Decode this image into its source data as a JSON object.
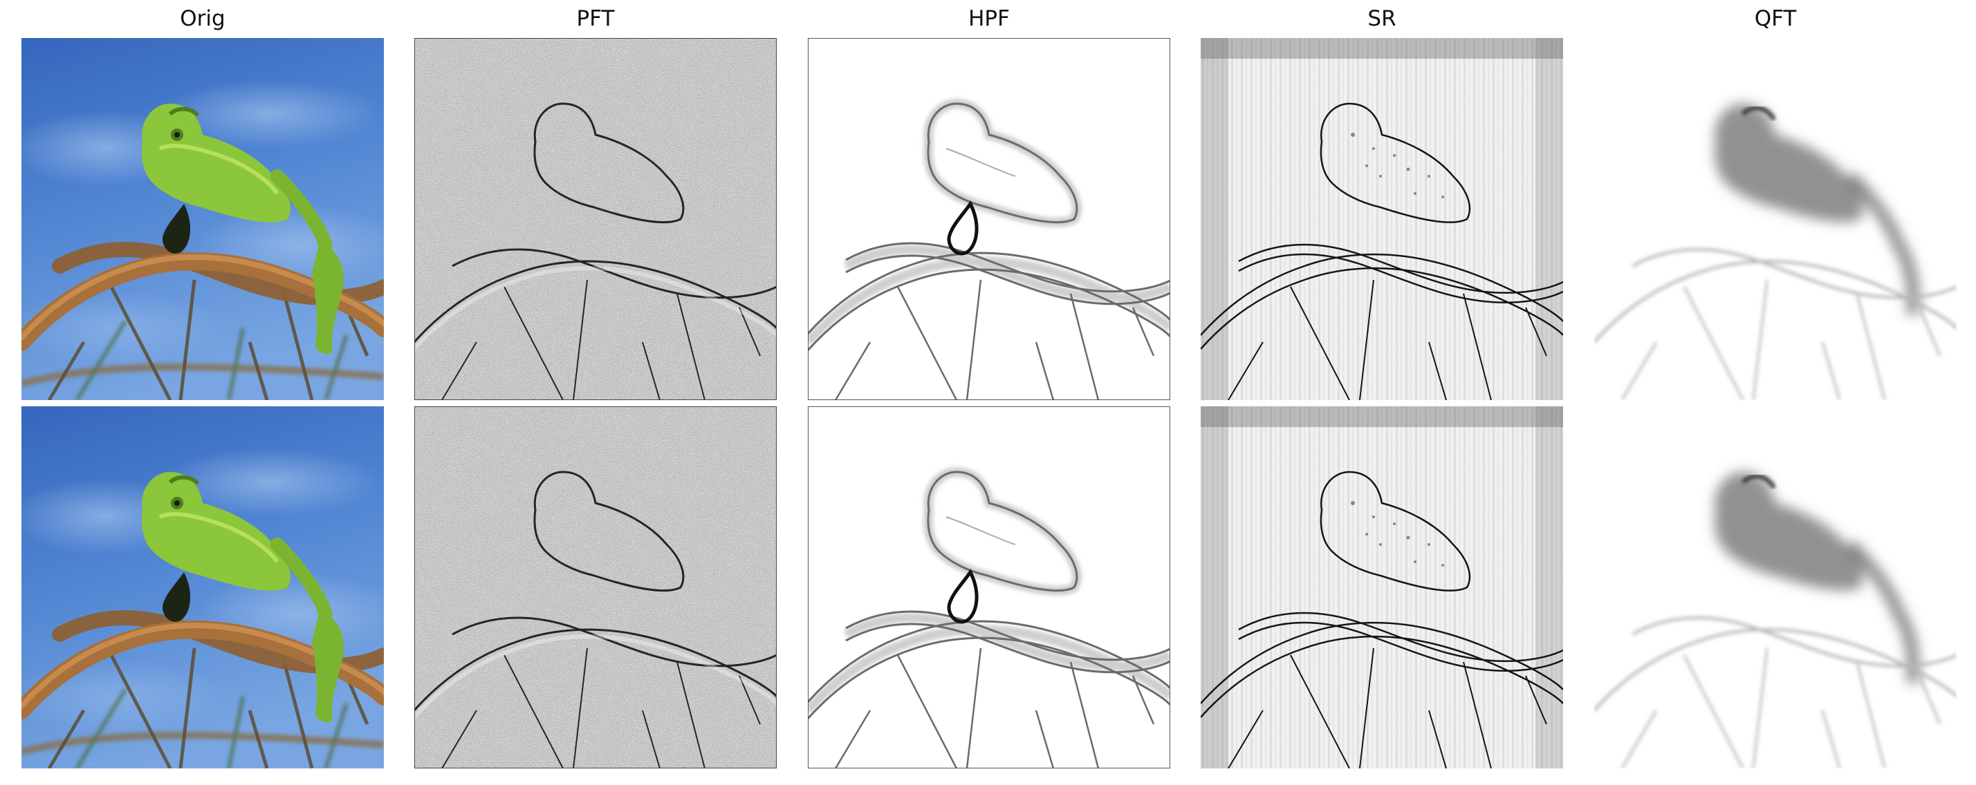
{
  "columns": [
    {
      "key": "orig",
      "title": "Orig",
      "style": "color"
    },
    {
      "key": "pft",
      "title": "PFT",
      "style": "noisy-edges"
    },
    {
      "key": "hpf",
      "title": "HPF",
      "style": "soft-edges"
    },
    {
      "key": "sr",
      "title": "SR",
      "style": "streaked-edges"
    },
    {
      "key": "qft",
      "title": "QFT",
      "style": "blurred-saliency"
    }
  ],
  "rows": 2,
  "subject": "chameleon-on-branch",
  "colors": {
    "sky_top": "#3a6fc4",
    "sky_bottom": "#6f9de0",
    "chameleon": "#8cc63a",
    "chameleon_dark": "#4f7d1e",
    "branch": "#a8703a",
    "ink": "#111111",
    "paper": "#ffffff",
    "noise_dark": "#3a3a3a",
    "noise_light": "#d9d9d9"
  }
}
